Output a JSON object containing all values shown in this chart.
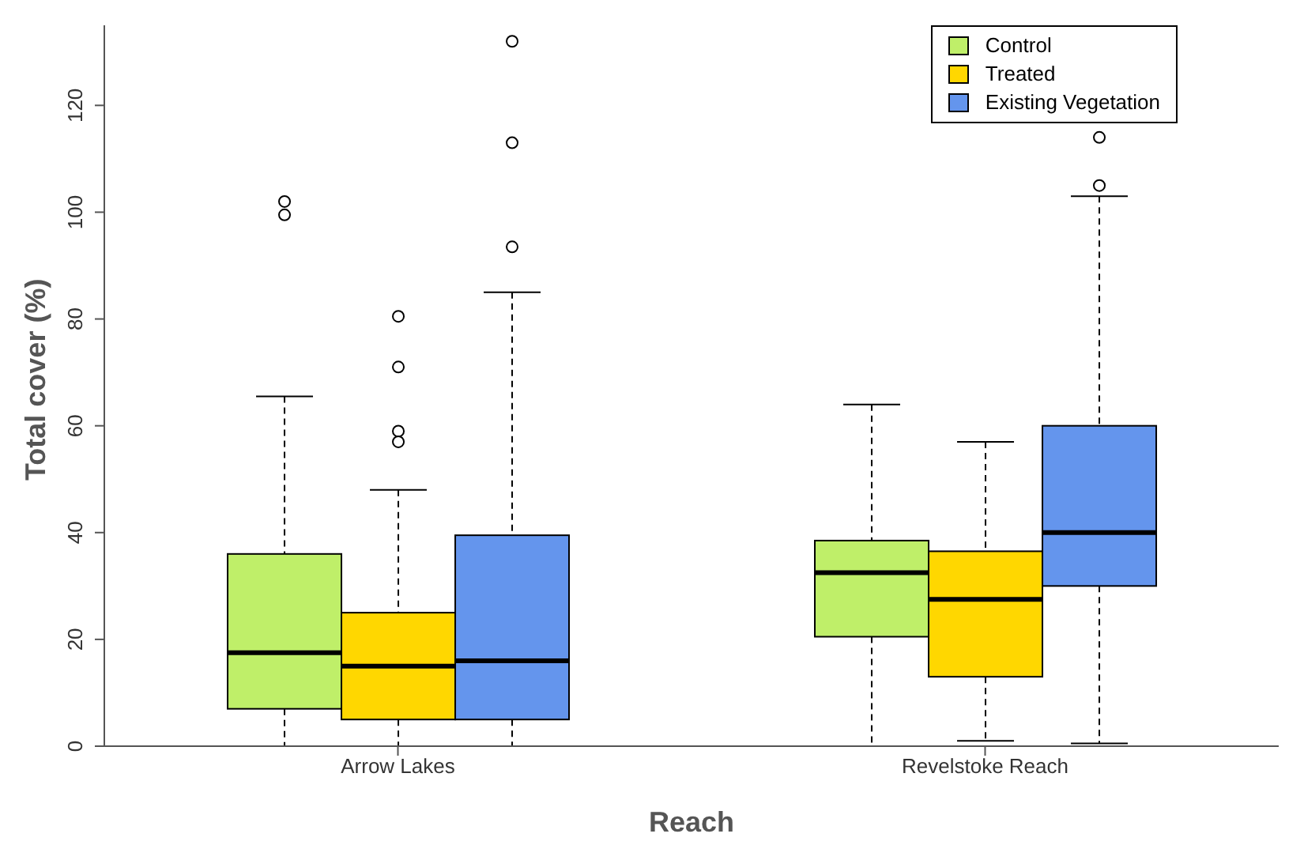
{
  "chart_data": {
    "type": "box",
    "xlabel": "Reach",
    "ylabel": "Total cover (%)",
    "categories": [
      "Arrow Lakes",
      "Revelstoke Reach"
    ],
    "ylim": [
      0,
      135
    ],
    "yticks": [
      0,
      20,
      40,
      60,
      80,
      100,
      120
    ],
    "legend": "top right",
    "grid": false,
    "series": [
      {
        "name": "Control",
        "color": "#bfef69",
        "boxes": [
          {
            "low": 0,
            "q1": 7,
            "median": 17.5,
            "q3": 36,
            "high": 65.5,
            "outliers": [
              102,
              99.5
            ]
          },
          {
            "low": 0,
            "q1": 20.5,
            "median": 32.5,
            "q3": 38.5,
            "high": 64
          }
        ]
      },
      {
        "name": "Treated",
        "color": "#ffd700",
        "boxes": [
          {
            "low": 0,
            "q1": 5,
            "median": 15,
            "q3": 25,
            "high": 48,
            "outliers": [
              80.5,
              71,
              59,
              57
            ]
          },
          {
            "low": 1,
            "q1": 13,
            "median": 27.5,
            "q3": 36.5,
            "high": 57
          }
        ]
      },
      {
        "name": "Existing Vegetation",
        "color": "#6495ed",
        "boxes": [
          {
            "low": 0,
            "q1": 5,
            "median": 16,
            "q3": 39.5,
            "high": 85,
            "outliers": [
              132,
              113,
              93.5
            ]
          },
          {
            "low": 0.5,
            "q1": 30,
            "median": 40,
            "q3": 60,
            "high": 103,
            "outliers": [
              114,
              105
            ]
          }
        ]
      }
    ]
  }
}
